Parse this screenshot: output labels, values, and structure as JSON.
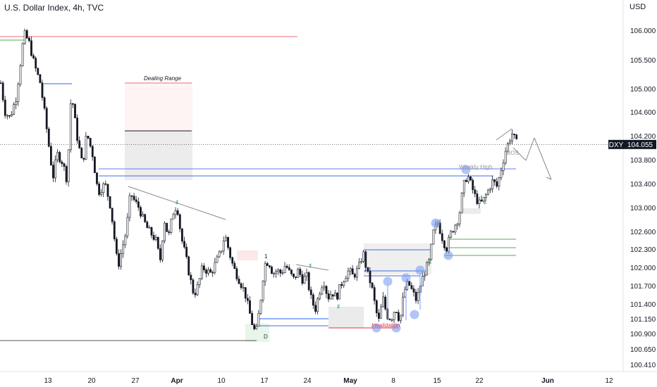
{
  "header": {
    "title": "U.S. Dollar Index, 4h, TVC",
    "currency": "USD"
  },
  "chart_data": {
    "type": "candlestick",
    "symbol": "DXY",
    "last_price": "104.055",
    "ylim": [
      100.38,
      106.25
    ],
    "price_ticks": [
      "106.000",
      "105.500",
      "105.000",
      "104.600",
      "104.200",
      "103.800",
      "103.400",
      "103.000",
      "102.600",
      "102.300",
      "102.000",
      "101.700",
      "101.400",
      "101.150",
      "100.900",
      "100.650",
      "100.410"
    ],
    "time_ticks": [
      {
        "label": "13",
        "bold": false
      },
      {
        "label": "20",
        "bold": false
      },
      {
        "label": "27",
        "bold": false
      },
      {
        "label": "Apr",
        "bold": true
      },
      {
        "label": "10",
        "bold": false
      },
      {
        "label": "17",
        "bold": false
      },
      {
        "label": "24",
        "bold": false
      },
      {
        "label": "May",
        "bold": true
      },
      {
        "label": "8",
        "bold": false
      },
      {
        "label": "15",
        "bold": false
      },
      {
        "label": "22",
        "bold": false
      },
      {
        "label": "Jun",
        "bold": true
      },
      {
        "label": "12",
        "bold": false
      }
    ],
    "path": [
      [
        0,
        105.1
      ],
      [
        6,
        104.6
      ],
      [
        13,
        104.5
      ],
      [
        22,
        104.85
      ],
      [
        33,
        105.95
      ],
      [
        40,
        105.8
      ],
      [
        48,
        105.4
      ],
      [
        56,
        105.1
      ],
      [
        62,
        104.6
      ],
      [
        68,
        104.05
      ],
      [
        74,
        103.5
      ],
      [
        80,
        103.9
      ],
      [
        88,
        103.75
      ],
      [
        94,
        103.45
      ],
      [
        100,
        104.95
      ],
      [
        108,
        104.2
      ],
      [
        116,
        103.7
      ],
      [
        122,
        104.25
      ],
      [
        130,
        103.9
      ],
      [
        138,
        103.25
      ],
      [
        148,
        103.4
      ],
      [
        156,
        103.0
      ],
      [
        160,
        102.6
      ],
      [
        166,
        102.0
      ],
      [
        172,
        102.3
      ],
      [
        178,
        102.6
      ],
      [
        184,
        103.25
      ],
      [
        190,
        103.1
      ],
      [
        196,
        103.0
      ],
      [
        202,
        102.8
      ],
      [
        208,
        102.65
      ],
      [
        214,
        102.55
      ],
      [
        220,
        102.45
      ],
      [
        226,
        102.1
      ],
      [
        232,
        102.8
      ],
      [
        238,
        102.5
      ],
      [
        244,
        102.9
      ],
      [
        250,
        103.05
      ],
      [
        256,
        102.5
      ],
      [
        262,
        102.2
      ],
      [
        268,
        101.85
      ],
      [
        274,
        101.55
      ],
      [
        280,
        101.7
      ],
      [
        286,
        102.0
      ],
      [
        292,
        101.95
      ],
      [
        298,
        101.9
      ],
      [
        306,
        102.1
      ],
      [
        312,
        102.25
      ],
      [
        318,
        102.55
      ],
      [
        324,
        102.25
      ],
      [
        330,
        102.0
      ],
      [
        338,
        101.8
      ],
      [
        346,
        101.6
      ],
      [
        352,
        101.3
      ],
      [
        358,
        101.0
      ],
      [
        362,
        100.9
      ],
      [
        368,
        101.4
      ],
      [
        374,
        102.05
      ],
      [
        380,
        102.1
      ],
      [
        386,
        101.9
      ],
      [
        392,
        101.95
      ],
      [
        398,
        101.9
      ],
      [
        404,
        102.05
      ],
      [
        410,
        101.9
      ],
      [
        416,
        101.8
      ],
      [
        422,
        101.95
      ],
      [
        428,
        101.8
      ],
      [
        434,
        101.85
      ],
      [
        440,
        101.5
      ],
      [
        446,
        101.3
      ],
      [
        452,
        101.6
      ],
      [
        458,
        101.8
      ],
      [
        464,
        101.5
      ],
      [
        470,
        101.6
      ],
      [
        476,
        101.5
      ],
      [
        482,
        101.7
      ],
      [
        488,
        101.85
      ],
      [
        494,
        101.95
      ],
      [
        500,
        101.85
      ],
      [
        508,
        102.0
      ],
      [
        514,
        102.25
      ],
      [
        520,
        101.9
      ],
      [
        526,
        101.7
      ],
      [
        532,
        101.3
      ],
      [
        536,
        101.1
      ],
      [
        542,
        101.5
      ],
      [
        548,
        101.2
      ],
      [
        554,
        101.15
      ],
      [
        560,
        101.35
      ],
      [
        566,
        101.1
      ],
      [
        572,
        101.6
      ],
      [
        578,
        101.75
      ],
      [
        584,
        101.6
      ],
      [
        590,
        101.45
      ],
      [
        596,
        101.75
      ],
      [
        602,
        101.95
      ],
      [
        608,
        102.1
      ],
      [
        614,
        102.6
      ],
      [
        620,
        102.75
      ],
      [
        626,
        102.5
      ],
      [
        632,
        102.3
      ],
      [
        638,
        102.55
      ],
      [
        644,
        102.7
      ],
      [
        650,
        102.85
      ],
      [
        656,
        103.35
      ],
      [
        662,
        103.55
      ],
      [
        668,
        103.35
      ],
      [
        674,
        103.15
      ],
      [
        680,
        103.05
      ],
      [
        686,
        103.15
      ],
      [
        692,
        103.3
      ],
      [
        698,
        103.45
      ],
      [
        704,
        103.35
      ],
      [
        710,
        103.65
      ],
      [
        716,
        103.95
      ],
      [
        722,
        104.15
      ],
      [
        726,
        104.25
      ],
      [
        730,
        104.1
      ],
      [
        734,
        104.05
      ]
    ]
  },
  "annotations": {
    "dealing_range": "Dealing Range",
    "weekly_high": "Weekly High",
    "bos": "BOS",
    "invalidation": "Invalidation",
    "d_label": "D",
    "one_label": "1",
    "markers": [
      "$",
      "$",
      "$",
      "$",
      "$"
    ]
  }
}
